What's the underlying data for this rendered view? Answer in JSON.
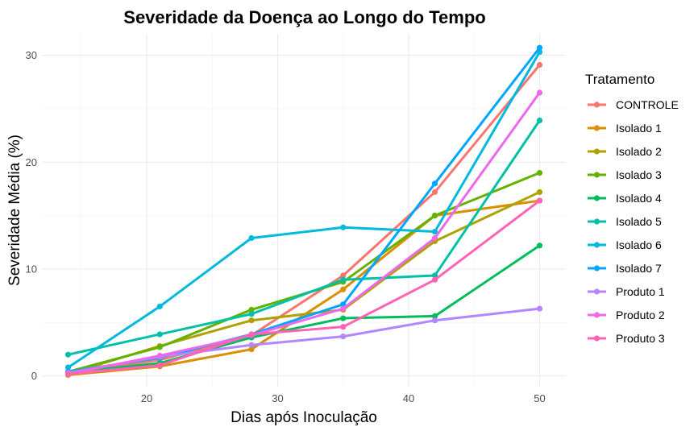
{
  "chart_data": {
    "type": "line",
    "title": "Severidade da Doença ao Longo do Tempo",
    "xlabel": "Dias após Inoculação",
    "ylabel": "Severidade Média (%)",
    "xlim": [
      12,
      52
    ],
    "ylim": [
      -1,
      32
    ],
    "x_ticks": [
      20,
      30,
      40,
      50
    ],
    "y_ticks": [
      0,
      10,
      20,
      30
    ],
    "grid": true,
    "legend_title": "Tratamento",
    "legend_position": "right",
    "x": [
      14,
      21,
      28,
      35,
      42,
      50
    ],
    "series": [
      {
        "name": "CONTROLE",
        "color": "#F8766D",
        "values": [
          0.3,
          1.5,
          3.8,
          9.4,
          17.2,
          29.1
        ]
      },
      {
        "name": "Isolado 1",
        "color": "#DB8E00",
        "values": [
          0.1,
          0.9,
          2.5,
          8.1,
          15.0,
          16.4
        ]
      },
      {
        "name": "Isolado 2",
        "color": "#AEA200",
        "values": [
          0.2,
          2.8,
          5.2,
          6.2,
          12.6,
          17.2
        ]
      },
      {
        "name": "Isolado 3",
        "color": "#64B200",
        "values": [
          0.4,
          2.7,
          6.2,
          8.8,
          15.0,
          19.0
        ]
      },
      {
        "name": "Isolado 4",
        "color": "#00BD5C",
        "values": [
          0.3,
          1.2,
          3.6,
          5.4,
          5.6,
          12.2
        ]
      },
      {
        "name": "Isolado 5",
        "color": "#00C1A7",
        "values": [
          2.0,
          3.9,
          5.8,
          9.0,
          9.4,
          23.9
        ]
      },
      {
        "name": "Isolado 6",
        "color": "#00BADE",
        "values": [
          0.8,
          6.5,
          12.9,
          13.9,
          13.5,
          30.3
        ]
      },
      {
        "name": "Isolado 7",
        "color": "#00A6FF",
        "values": [
          0.4,
          1.7,
          3.9,
          6.7,
          18.0,
          30.7
        ]
      },
      {
        "name": "Produto 1",
        "color": "#B385FF",
        "values": [
          0.3,
          1.8,
          2.9,
          3.7,
          5.2,
          6.3
        ]
      },
      {
        "name": "Produto 2",
        "color": "#EF67EB",
        "values": [
          0.2,
          1.9,
          3.8,
          6.3,
          12.9,
          26.5
        ]
      },
      {
        "name": "Produto 3",
        "color": "#FF63B6",
        "values": [
          0.2,
          1.0,
          3.9,
          4.6,
          9.0,
          16.4
        ]
      }
    ]
  }
}
